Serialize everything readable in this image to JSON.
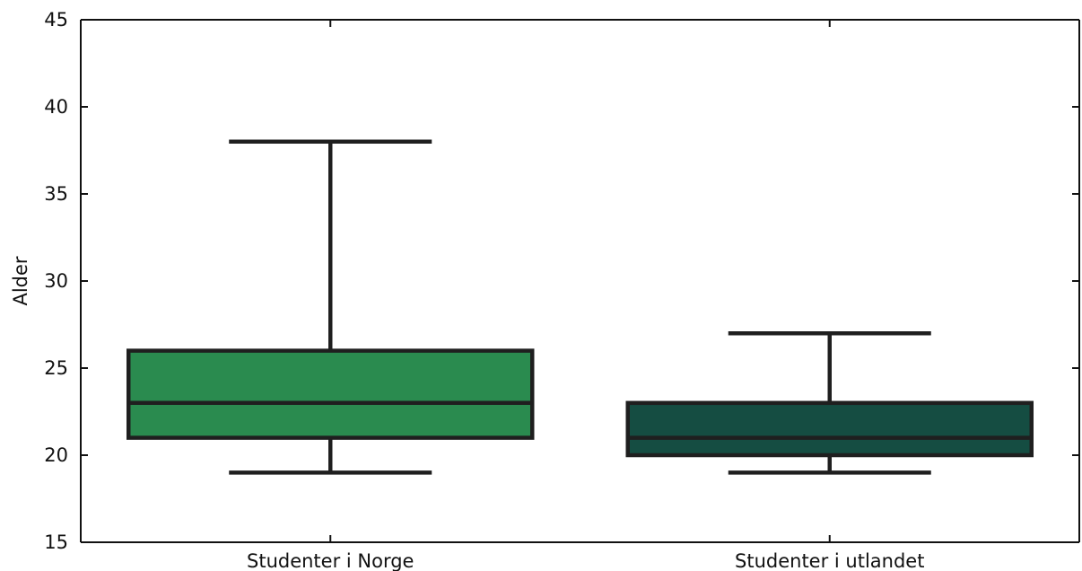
{
  "chart_data": {
    "type": "box",
    "xlabel": "",
    "ylabel": "Alder",
    "ylim": [
      15,
      45
    ],
    "yticks": [
      15,
      20,
      25,
      30,
      35,
      40,
      45
    ],
    "categories": [
      "Studenter i Norge",
      "Studenter i utlandet"
    ],
    "boxes": [
      {
        "category": "Studenter i Norge",
        "whisker_low": 19,
        "q1": 21,
        "median": 23,
        "q3": 26,
        "whisker_high": 38,
        "color": "#2a8b4f"
      },
      {
        "category": "Studenter i utlandet",
        "whisker_low": 19,
        "q1": 20,
        "median": 21,
        "q3": 23,
        "whisker_high": 27,
        "color": "#154d42"
      }
    ],
    "grid": false,
    "legend": "none",
    "colors": {
      "axis": "#111111",
      "box_edge": "#1f1f1f"
    }
  }
}
